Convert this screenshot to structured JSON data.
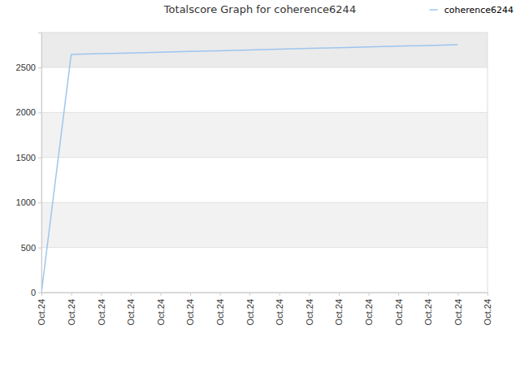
{
  "chart_data": {
    "type": "line",
    "title": "Totalscore Graph for coherence6244",
    "categories": [
      "Oct.24",
      "Oct.24",
      "Oct.24",
      "Oct.24",
      "Oct.24",
      "Oct.24",
      "Oct.24",
      "Oct.24",
      "Oct.24",
      "Oct.24",
      "Oct.24",
      "Oct.24",
      "Oct.24",
      "Oct.24",
      "Oct.24",
      "Oct.24"
    ],
    "series": [
      {
        "name": "coherence6244",
        "color": "#9ec5ef",
        "values": [
          0,
          2645,
          2653,
          2661,
          2669,
          2678,
          2686,
          2694,
          2703,
          2711,
          2719,
          2728,
          2736,
          2744,
          2753,
          null
        ]
      }
    ],
    "ylim": [
      0,
      2888
    ],
    "yticks": [
      0,
      500,
      1000,
      1500,
      2000,
      2500
    ],
    "grid": true,
    "legend": "top-right"
  }
}
